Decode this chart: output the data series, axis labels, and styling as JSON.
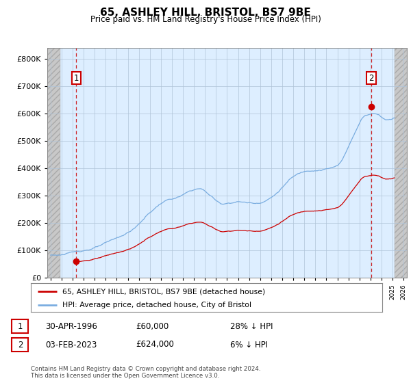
{
  "title": "65, ASHLEY HILL, BRISTOL, BS7 9BE",
  "subtitle": "Price paid vs. HM Land Registry's House Price Index (HPI)",
  "legend_line1": "65, ASHLEY HILL, BRISTOL, BS7 9BE (detached house)",
  "legend_line2": "HPI: Average price, detached house, City of Bristol",
  "footnote": "Contains HM Land Registry data © Crown copyright and database right 2024.\nThis data is licensed under the Open Government Licence v3.0.",
  "transaction1_date": "30-APR-1996",
  "transaction1_price": 60000,
  "transaction1_note": "28% ↓ HPI",
  "transaction2_date": "03-FEB-2023",
  "transaction2_price": 624000,
  "transaction2_note": "6% ↓ HPI",
  "sale_color": "#cc0000",
  "hpi_color": "#7aade0",
  "ylim": [
    0,
    840000
  ],
  "yticks": [
    0,
    100000,
    200000,
    300000,
    400000,
    500000,
    600000,
    700000,
    800000
  ],
  "ytick_labels": [
    "£0",
    "£100K",
    "£200K",
    "£300K",
    "£400K",
    "£500K",
    "£600K",
    "£700K",
    "£800K"
  ],
  "xmin": 1993.7,
  "xmax": 2026.3,
  "bg_color": "#ddeeff",
  "grid_color": "#b0c4d8",
  "hatch_left_end": 1994.9,
  "hatch_right_start": 2025.2,
  "sale1_year_f": 1996.33,
  "sale1_price": 60000,
  "sale2_year_f": 2023.08,
  "sale2_price": 624000
}
